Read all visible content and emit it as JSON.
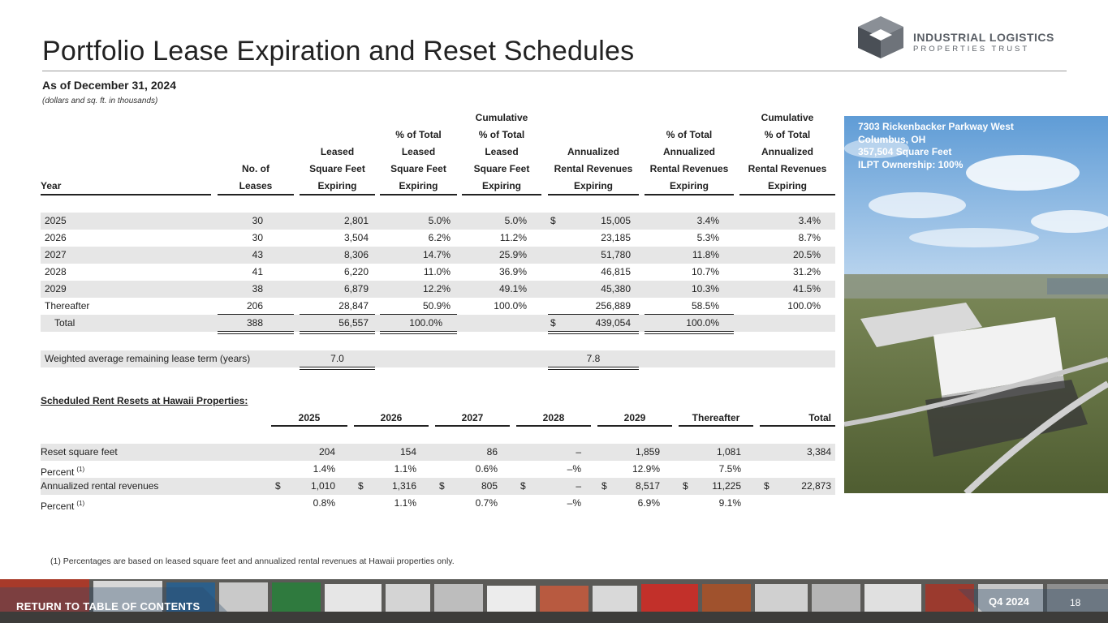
{
  "header": {
    "title": "Portfolio Lease Expiration and Reset Schedules",
    "as_of": "As of December 31, 2024",
    "units": "(dollars and sq. ft. in thousands)"
  },
  "logo": {
    "name": "INDUSTRIAL LOGISTICS",
    "sub": "PROPERTIES TRUST"
  },
  "expiration": {
    "headers": {
      "year": "Year",
      "leases": [
        "No. of",
        "Leases"
      ],
      "sqft": [
        "Leased",
        "Square Feet",
        "Expiring"
      ],
      "pct_sqft": [
        "% of Total",
        "Leased",
        "Square Feet",
        "Expiring"
      ],
      "cum_sqft": [
        "Cumulative",
        "% of Total",
        "Leased",
        "Square Feet",
        "Expiring"
      ],
      "rev": [
        "Annualized",
        "Rental Revenues",
        "Expiring"
      ],
      "pct_rev": [
        "% of Total",
        "Annualized",
        "Rental Revenues",
        "Expiring"
      ],
      "cum_rev": [
        "Cumulative",
        "% of Total",
        "Annualized",
        "Rental Revenues",
        "Expiring"
      ]
    },
    "rows": [
      {
        "year": "2025",
        "leases": "30",
        "sqft": "2,801",
        "pct_sqft": "5.0%",
        "cum_sqft": "5.0%",
        "dollar": "$",
        "rev": "15,005",
        "pct_rev": "3.4%",
        "cum_rev": "3.4%"
      },
      {
        "year": "2026",
        "leases": "30",
        "sqft": "3,504",
        "pct_sqft": "6.2%",
        "cum_sqft": "11.2%",
        "dollar": "",
        "rev": "23,185",
        "pct_rev": "5.3%",
        "cum_rev": "8.7%"
      },
      {
        "year": "2027",
        "leases": "43",
        "sqft": "8,306",
        "pct_sqft": "14.7%",
        "cum_sqft": "25.9%",
        "dollar": "",
        "rev": "51,780",
        "pct_rev": "11.8%",
        "cum_rev": "20.5%"
      },
      {
        "year": "2028",
        "leases": "41",
        "sqft": "6,220",
        "pct_sqft": "11.0%",
        "cum_sqft": "36.9%",
        "dollar": "",
        "rev": "46,815",
        "pct_rev": "10.7%",
        "cum_rev": "31.2%"
      },
      {
        "year": "2029",
        "leases": "38",
        "sqft": "6,879",
        "pct_sqft": "12.2%",
        "cum_sqft": "49.1%",
        "dollar": "",
        "rev": "45,380",
        "pct_rev": "10.3%",
        "cum_rev": "41.5%"
      },
      {
        "year": "Thereafter",
        "leases": "206",
        "sqft": "28,847",
        "pct_sqft": "50.9%",
        "cum_sqft": "100.0%",
        "dollar": "",
        "rev": "256,889",
        "pct_rev": "58.5%",
        "cum_rev": "100.0%"
      }
    ],
    "total": {
      "label": "Total",
      "leases": "388",
      "sqft": "56,557",
      "pct_sqft": "100.0%",
      "dollar": "$",
      "rev": "439,054",
      "pct_rev": "100.0%"
    },
    "wa": {
      "label": "Weighted average remaining lease term (years)",
      "sqft": "7.0",
      "rev": "7.8"
    }
  },
  "resets": {
    "title": "Scheduled Rent Resets at Hawaii Properties:",
    "columns": [
      "2025",
      "2026",
      "2027",
      "2028",
      "2029",
      "Thereafter",
      "Total"
    ],
    "rows": [
      {
        "label": "Reset square feet",
        "sup": "",
        "dollar": false,
        "values": [
          "204",
          "154",
          "86",
          "–",
          "1,859",
          "1,081",
          "3,384"
        ]
      },
      {
        "label": "Percent",
        "sup": "(1)",
        "dollar": false,
        "values": [
          "1.4%",
          "1.1%",
          "0.6%",
          "–%",
          "12.9%",
          "7.5%",
          ""
        ]
      },
      {
        "label": "Annualized rental revenues",
        "sup": "",
        "dollar": true,
        "values": [
          "1,010",
          "1,316",
          "805",
          "–",
          "8,517",
          "11,225",
          "22,873"
        ]
      },
      {
        "label": "Percent",
        "sup": "(1)",
        "dollar": false,
        "values": [
          "0.8%",
          "1.1%",
          "0.7%",
          "–%",
          "6.9%",
          "9.1%",
          ""
        ]
      }
    ]
  },
  "photo_caption": [
    "7303 Rickenbacker Parkway West",
    "Columbus, OH",
    "357,504 Square Feet",
    "ILPT Ownership: 100%"
  ],
  "footnote": "(1)    Percentages are based on leased square feet and annualized rental revenues at Hawaii properties only.",
  "footer": {
    "toc": "RETURN TO TABLE OF CONTENTS",
    "quarter": "Q4 2024",
    "page": "18"
  },
  "colors": {
    "shade": "#e6e6e6",
    "logo_gray": "#5a5f66"
  }
}
